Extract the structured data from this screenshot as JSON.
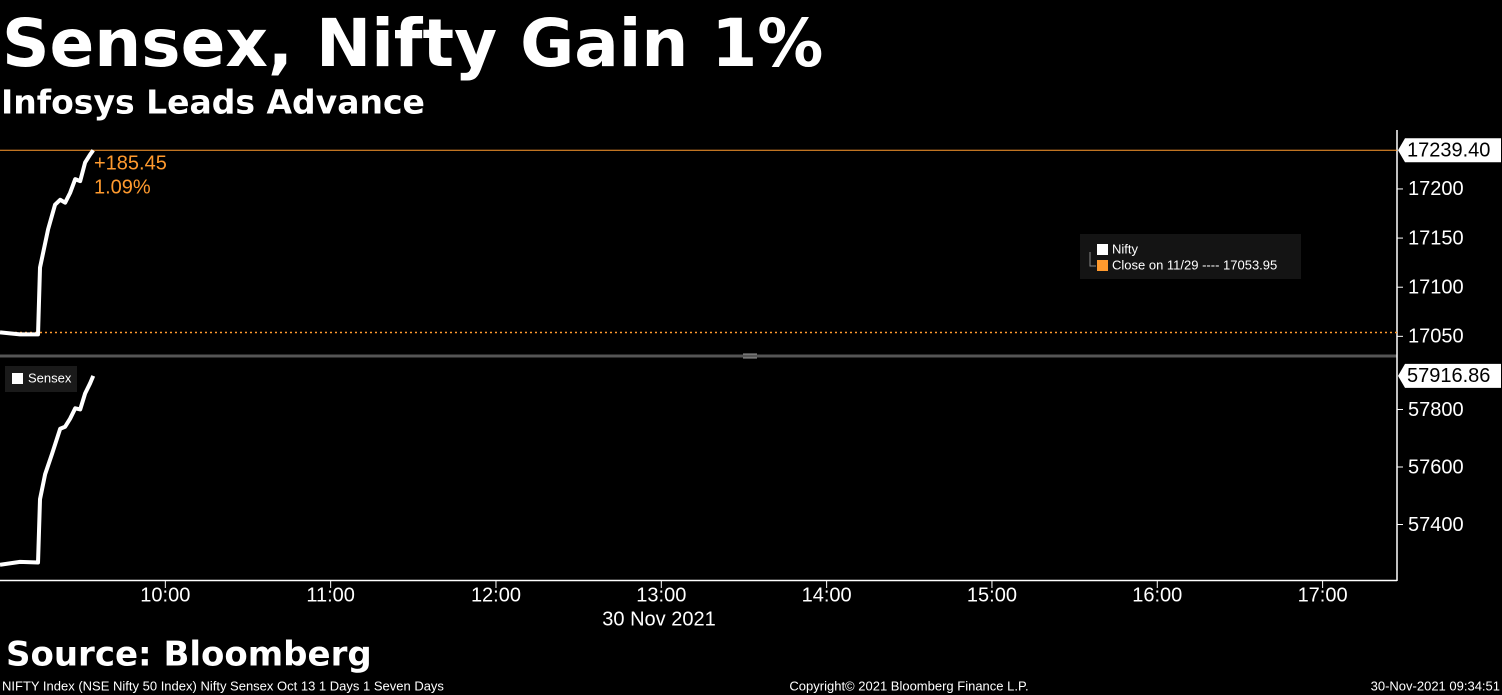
{
  "title": "Sensex, Nifty Gain 1%",
  "subtitle": "Infosys Leads Advance",
  "source": "Source: Bloomberg",
  "footer": {
    "left": "NIFTY Index (NSE Nifty 50 Index) Nifty Sensex Oct 13 1 Days 1 Seven Days",
    "center": "Copyright© 2021 Bloomberg Finance L.P.",
    "right": "30-Nov-2021 09:34:51"
  },
  "chart_data": [
    {
      "type": "line",
      "x": [
        9.0,
        9.121,
        9.23,
        9.242,
        9.291,
        9.333,
        9.364,
        9.394,
        9.424,
        9.455,
        9.485,
        9.515,
        9.545,
        9.564
      ],
      "series": [
        {
          "name": "Nifty",
          "color": "#ffffff",
          "values": [
            17054,
            17052,
            17052,
            17120,
            17159,
            17184,
            17189,
            17186,
            17196,
            17210,
            17208,
            17227,
            17235,
            17239.4
          ]
        }
      ],
      "reference_line": {
        "name": "Close on 11/29 ---- 17053.95",
        "value": 17053.95,
        "color": "#ff9a2e"
      },
      "last_value": {
        "value": 17239.4,
        "label": "17239.40"
      },
      "annotations": [
        "+185.45",
        "1.09%"
      ],
      "xlim": [
        9.0,
        17.45
      ],
      "ylim": [
        17031,
        17260
      ],
      "yticks": [
        17050,
        17100,
        17150,
        17200
      ]
    },
    {
      "type": "line",
      "x": [
        9.0,
        9.121,
        9.23,
        9.242,
        9.273,
        9.315,
        9.364,
        9.394,
        9.424,
        9.455,
        9.485,
        9.515,
        9.545,
        9.564
      ],
      "series": [
        {
          "name": "Sensex",
          "color": "#ffffff",
          "values": [
            57260,
            57270,
            57268,
            57488,
            57575,
            57646,
            57733,
            57740,
            57768,
            57804,
            57800,
            57856,
            57891,
            57916.86
          ]
        }
      ],
      "last_value": 57916.86,
      "xlim": [
        9.0,
        17.45
      ],
      "ylim": [
        57207,
        57979
      ],
      "yticks": [
        57400,
        57600,
        57800
      ],
      "xticks": [
        {
          "value": 10,
          "label": "10:00"
        },
        {
          "value": 11,
          "label": "11:00"
        },
        {
          "value": 12,
          "label": "12:00"
        },
        {
          "value": 13,
          "label": "13:00"
        },
        {
          "value": 14,
          "label": "14:00"
        },
        {
          "value": 15,
          "label": "15:00"
        },
        {
          "value": 16,
          "label": "16:00"
        },
        {
          "value": 17,
          "label": "17:00"
        }
      ],
      "xlabel": "30 Nov 2021"
    }
  ]
}
